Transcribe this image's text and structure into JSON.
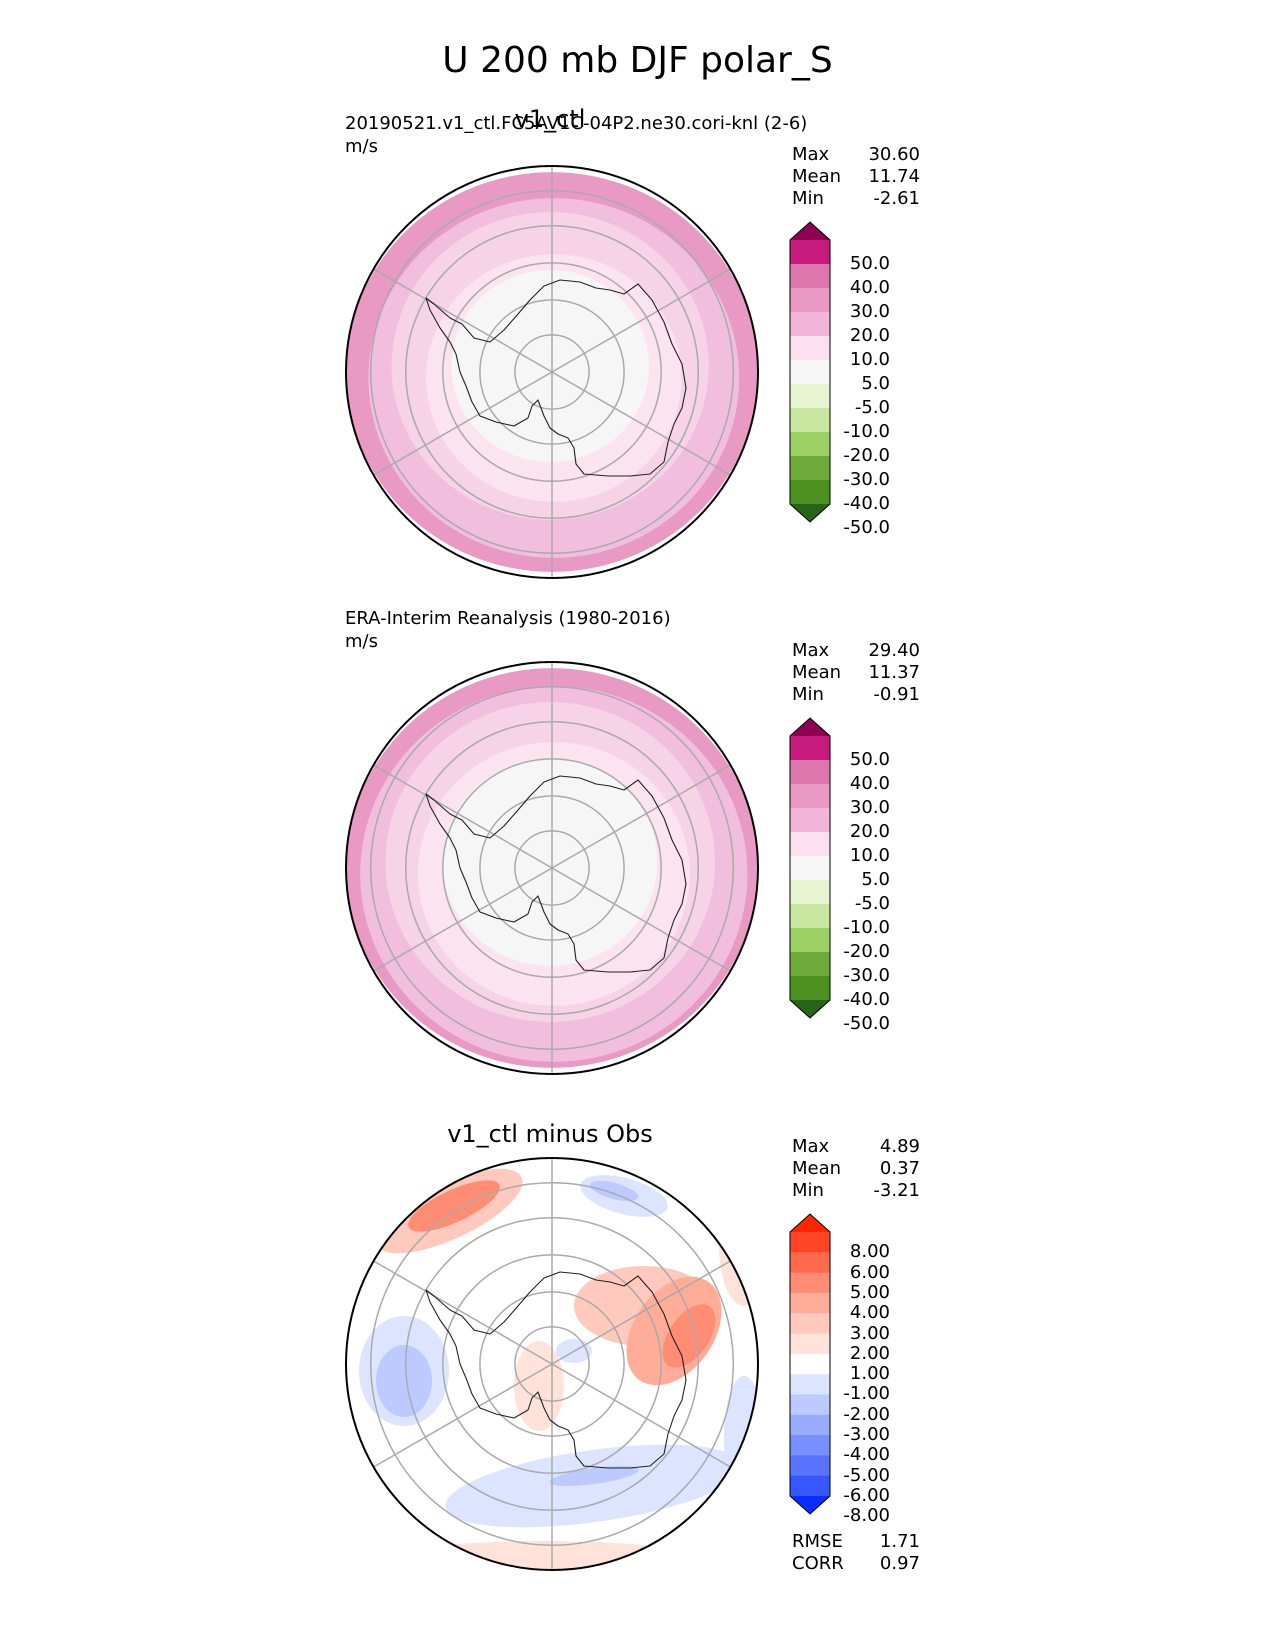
{
  "title": "U 200 mb DJF polar_S",
  "panels": [
    {
      "id": "test",
      "panel_title": "v1_ctl",
      "subtitle": "20190521.v1_ctl.FC5AV1C-04P2.ne30.cori-knl (2-6)",
      "units": "m/s",
      "stats": {
        "max_label": "Max",
        "max": "30.60",
        "mean_label": "Mean",
        "mean": "11.74",
        "min_label": "Min",
        "min": "-2.61"
      },
      "colorbar": {
        "labels": [
          "50.0",
          "40.0",
          "30.0",
          "20.0",
          "10.0",
          "5.0",
          "-5.0",
          "-10.0",
          "-20.0",
          "-30.0",
          "-40.0",
          "-50.0"
        ],
        "colors": [
          "#8e0152",
          "#c51b7d",
          "#de77ae",
          "#e899c4",
          "#f1b6da",
          "#fde0ef",
          "#f7f7f7",
          "#e6f5d0",
          "#c7e7a0",
          "#9cd063",
          "#6fab3b",
          "#4d9221",
          "#276419"
        ]
      },
      "rings": [
        "#e899c4",
        "#f1bfdd",
        "#f7d3e8",
        "#fbe3f0",
        "#f6f6f6"
      ],
      "ring_fracs": [
        1.0,
        0.9,
        0.77,
        0.62,
        0.48
      ]
    },
    {
      "id": "ref",
      "panel_title": "",
      "subtitle": "ERA-Interim Reanalysis (1980-2016)",
      "units": "m/s",
      "stats": {
        "max_label": "Max",
        "max": "29.40",
        "mean_label": "Mean",
        "mean": "11.37",
        "min_label": "Min",
        "min": "-0.91"
      },
      "colorbar": {
        "labels": [
          "50.0",
          "40.0",
          "30.0",
          "20.0",
          "10.0",
          "5.0",
          "-5.0",
          "-10.0",
          "-20.0",
          "-30.0",
          "-40.0",
          "-50.0"
        ],
        "colors": [
          "#8e0152",
          "#c51b7d",
          "#de77ae",
          "#e899c4",
          "#f1b6da",
          "#fde0ef",
          "#f7f7f7",
          "#e6f5d0",
          "#c7e7a0",
          "#9cd063",
          "#6fab3b",
          "#4d9221",
          "#276419"
        ]
      },
      "rings": [
        "#e899c4",
        "#f1bfdd",
        "#f7d3e8",
        "#fbe3f0",
        "#f6f6f6"
      ],
      "ring_fracs": [
        1.0,
        0.94,
        0.8,
        0.66,
        0.52
      ]
    },
    {
      "id": "diff",
      "panel_title": "v1_ctl minus Obs",
      "subtitle": "",
      "units": "",
      "stats": {
        "max_label": "Max",
        "max": "4.89",
        "mean_label": "Mean",
        "mean": "0.37",
        "min_label": "Min",
        "min": "-3.21"
      },
      "metrics": {
        "rmse_label": "RMSE",
        "rmse": "1.71",
        "corr_label": "CORR",
        "corr": "0.97"
      },
      "colorbar": {
        "labels": [
          "8.00",
          "6.00",
          "5.00",
          "4.00",
          "3.00",
          "2.00",
          "1.00",
          "-1.00",
          "-2.00",
          "-3.00",
          "-4.00",
          "-5.00",
          "-6.00",
          "-8.00"
        ],
        "colors": [
          "#ff2600",
          "#ff4526",
          "#ff6a4d",
          "#ff8c73",
          "#ffac99",
          "#ffc9bd",
          "#ffe2da",
          "#ffffff",
          "#dce4ff",
          "#bccaff",
          "#9aacff",
          "#7890ff",
          "#5873ff",
          "#3656ff",
          "#0a2dff"
        ]
      }
    }
  ],
  "chart_data": {
    "type": "heatmap",
    "title": "U 200 mb DJF polar_S",
    "projection": "south polar stereographic",
    "panels": [
      {
        "name": "v1_ctl",
        "units": "m/s",
        "max": 30.6,
        "mean": 11.74,
        "min": -2.61,
        "levels": [
          -50,
          -40,
          -30,
          -20,
          -10,
          -5,
          5,
          10,
          20,
          30,
          40,
          50
        ]
      },
      {
        "name": "ERA-Interim Reanalysis (1980-2016)",
        "units": "m/s",
        "max": 29.4,
        "mean": 11.37,
        "min": -0.91,
        "levels": [
          -50,
          -40,
          -30,
          -20,
          -10,
          -5,
          5,
          10,
          20,
          30,
          40,
          50
        ]
      },
      {
        "name": "v1_ctl minus Obs",
        "max": 4.89,
        "mean": 0.37,
        "min": -3.21,
        "rmse": 1.71,
        "corr": 0.97,
        "levels": [
          -8,
          -6,
          -5,
          -4,
          -3,
          -2,
          -1,
          1,
          2,
          3,
          4,
          5,
          6,
          8
        ]
      }
    ]
  }
}
